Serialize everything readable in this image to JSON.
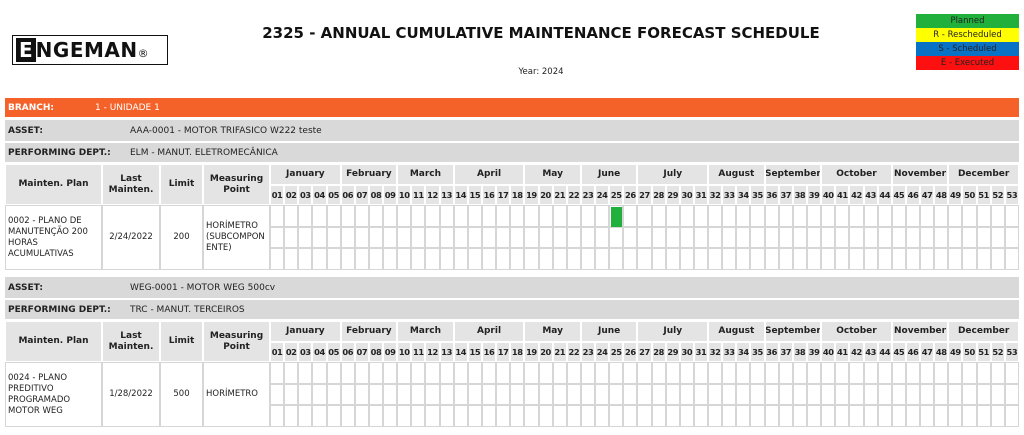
{
  "header": {
    "logo": {
      "initial": "E",
      "rest": "NGEMAN",
      "mark": "®"
    },
    "title": "2325 - ANNUAL CUMULATIVE MAINTENANCE FORECAST SCHEDULE",
    "year": "Year: 2024"
  },
  "legend": [
    {
      "label": "Planned",
      "color": "#22b03c"
    },
    {
      "label": "R - Rescheduled",
      "color": "#ffff00"
    },
    {
      "label": "S - Scheduled",
      "color": "#0a72c4"
    },
    {
      "label": "E - Executed",
      "color": "#ff1010"
    }
  ],
  "branch": {
    "label": "BRANCH:",
    "value": "1 - UNIDADE 1"
  },
  "calendar": {
    "months": [
      {
        "label": "January",
        "span": 5
      },
      {
        "label": "February",
        "span": 4
      },
      {
        "label": "March",
        "span": 4
      },
      {
        "label": "April",
        "span": 5
      },
      {
        "label": "May",
        "span": 4
      },
      {
        "label": "June",
        "span": 4
      },
      {
        "label": "July",
        "span": 5
      },
      {
        "label": "August",
        "span": 4
      },
      {
        "label": "September",
        "span": 4
      },
      {
        "label": "October",
        "span": 5
      },
      {
        "label": "November",
        "span": 4
      },
      {
        "label": "December",
        "span": 5
      }
    ],
    "weeks": [
      "01",
      "02",
      "03",
      "04",
      "05",
      "06",
      "07",
      "08",
      "09",
      "10",
      "11",
      "12",
      "13",
      "14",
      "15",
      "16",
      "17",
      "18",
      "19",
      "20",
      "21",
      "22",
      "23",
      "24",
      "25",
      "26",
      "27",
      "28",
      "29",
      "30",
      "31",
      "32",
      "33",
      "34",
      "35",
      "36",
      "37",
      "38",
      "39",
      "40",
      "41",
      "42",
      "43",
      "44",
      "45",
      "46",
      "47",
      "48",
      "49",
      "50",
      "51",
      "52",
      "53"
    ]
  },
  "column_headers": [
    "Mainten. Plan",
    "Last Mainten.",
    "Limit",
    "Measuring Point"
  ],
  "assets": [
    {
      "asset_label": "ASSET:",
      "asset": "AAA-0001 - MOTOR TRIFASICO W222 teste",
      "dept_label": "PERFORMING DEPT.:",
      "dept": "ELM - MANUT. ELETROMECÂNICA",
      "plan": {
        "name": "0002 - PLANO DE MANUTENÇÃO 200 HORAS ACUMULATIVAS",
        "last": "2/24/2022",
        "limit": 200,
        "point": "HORÍMETRO (SUBCOMPONENTE)",
        "rows": [
          [
            {
              "week": "25",
              "status": "Planned"
            }
          ],
          [],
          []
        ]
      }
    },
    {
      "asset_label": "ASSET:",
      "asset": "WEG-0001 - MOTOR WEG 500cv",
      "dept_label": "PERFORMING DEPT.:",
      "dept": "TRC - MANUT. TERCEIROS",
      "plan": {
        "name": "0024 - PLANO PREDITIVO PROGRAMADO MOTOR WEG",
        "last": "1/28/2022",
        "limit": 500,
        "point": "HORÍMETRO",
        "rows": [
          [],
          [],
          []
        ]
      }
    }
  ]
}
